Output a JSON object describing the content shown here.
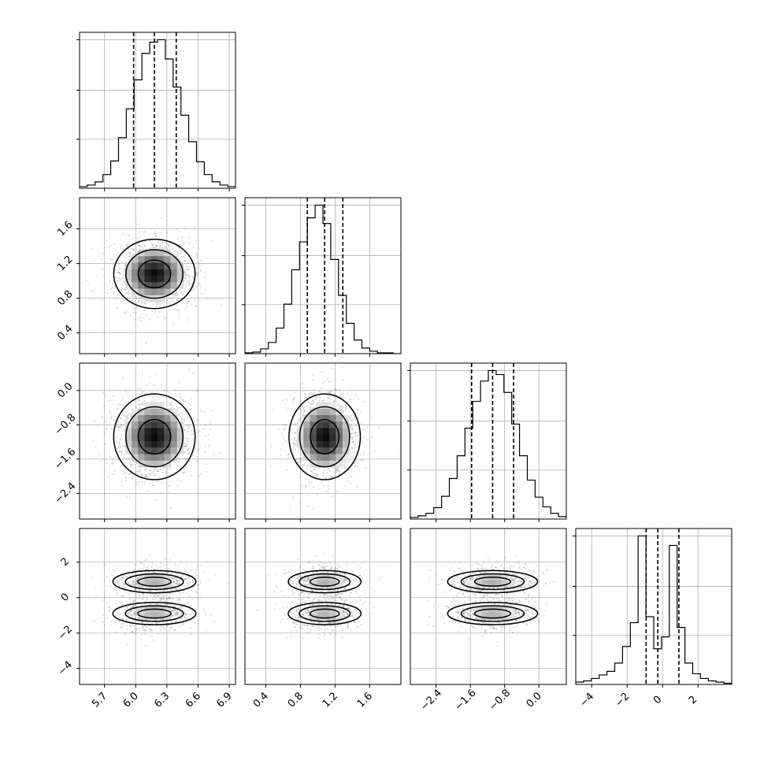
{
  "chart_data": {
    "type": "corner",
    "n_params": 4,
    "grid": true,
    "params": [
      {
        "ticks": [
          5.7,
          6.0,
          6.3,
          6.6,
          6.9
        ],
        "tick_labels": [
          "5.7",
          "6.0",
          "6.3",
          "6.6",
          "6.9"
        ],
        "range": [
          5.46,
          6.96
        ],
        "mean": 6.18,
        "sd": 0.19,
        "quantiles": [
          5.98,
          6.18,
          6.39
        ],
        "hist_counts": [
          2,
          4,
          8,
          17,
          34,
          63,
          99,
          135,
          168,
          182,
          185,
          161,
          126,
          91,
          58,
          33,
          17,
          8,
          4,
          2
        ]
      },
      {
        "ticks": [
          0.4,
          0.8,
          1.2,
          1.6
        ],
        "tick_labels": [
          "0.4",
          "0.8",
          "1.2",
          "1.6"
        ],
        "range": [
          0.16,
          1.96
        ],
        "mean": 1.08,
        "sd": 0.2,
        "quantiles": [
          0.88,
          1.08,
          1.29
        ],
        "hist_counts": [
          1,
          2,
          6,
          14,
          32,
          62,
          105,
          140,
          170,
          186,
          163,
          118,
          73,
          38,
          17,
          7,
          3,
          1,
          1,
          0
        ]
      },
      {
        "ticks": [
          -2.4,
          -1.6,
          -0.8,
          0.0
        ],
        "tick_labels": [
          "−2.4",
          "−1.6",
          "−0.8",
          "0.0"
        ],
        "range": [
          -3.0,
          0.64
        ],
        "mean": -1.08,
        "sd": 0.5,
        "quantiles": [
          -1.57,
          -1.08,
          -0.59
        ],
        "hist_counts": [
          2,
          4,
          7,
          14,
          28,
          50,
          78,
          112,
          145,
          170,
          183,
          178,
          156,
          117,
          78,
          48,
          27,
          15,
          7,
          3
        ]
      },
      {
        "ticks": [
          -4,
          -2,
          0,
          2
        ],
        "tick_labels": [
          "−4",
          "−2",
          "0",
          "2"
        ],
        "range": [
          -4.9,
          3.9
        ],
        "mean": 0.0,
        "sd": 1.0,
        "quantiles": [
          -0.93,
          -0.27,
          0.92
        ],
        "hist_counts": [
          2,
          3,
          5,
          8,
          11,
          18,
          32,
          52,
          125,
          57,
          30,
          40,
          117,
          48,
          18,
          9,
          5,
          3,
          2,
          1
        ]
      }
    ]
  }
}
